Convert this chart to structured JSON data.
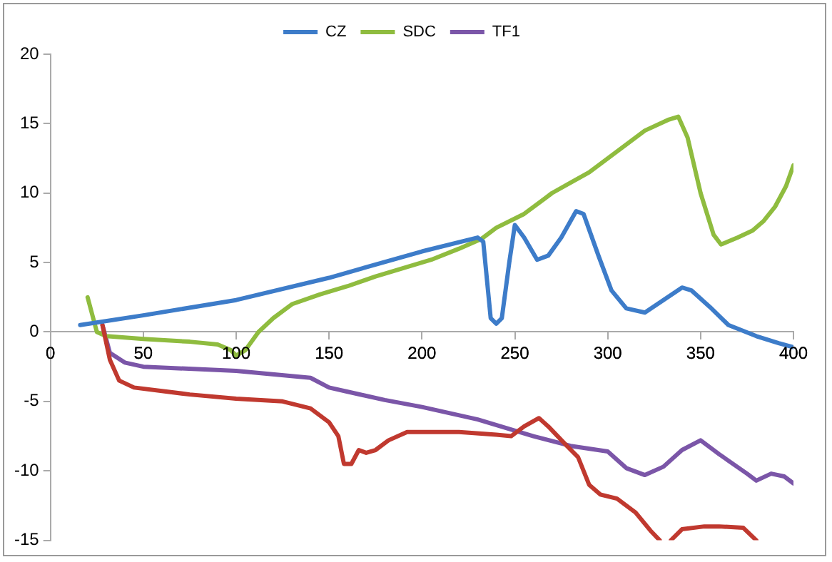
{
  "chart_data": {
    "type": "line",
    "legend": "top",
    "grid": false,
    "marker": "none",
    "line_style": "solid",
    "xlim": [
      0,
      400
    ],
    "xticks": [
      0,
      50,
      100,
      150,
      200,
      250,
      300,
      350,
      400
    ],
    "ylim": [
      -15,
      20
    ],
    "yticks": [
      -15,
      -10,
      -5,
      0,
      5,
      10,
      15,
      20
    ],
    "series": [
      {
        "name": "CZ",
        "color": "#3d7cc9",
        "x": [
          16,
          50,
          100,
          150,
          200,
          230,
          233,
          237,
          240,
          243,
          247,
          250,
          255,
          262,
          268,
          275,
          283,
          287,
          295,
          302,
          310,
          320,
          330,
          340,
          345,
          355,
          365,
          380,
          392,
          400
        ],
        "values": [
          0.5,
          1.2,
          2.3,
          3.9,
          5.8,
          6.8,
          6.5,
          1,
          0.6,
          1,
          5,
          7.7,
          6.8,
          5.2,
          5.5,
          6.8,
          8.7,
          8.5,
          5.5,
          3,
          1.7,
          1.4,
          2.3,
          3.2,
          3,
          1.8,
          0.5,
          -0.3,
          -0.8,
          -1.1
        ]
      },
      {
        "color": "#c0392f",
        "x": [
          28,
          32,
          37,
          45,
          75,
          100,
          125,
          140,
          150,
          155,
          158,
          162,
          166,
          170,
          175,
          182,
          192,
          220,
          240,
          248,
          255,
          263,
          268,
          278,
          284,
          290,
          296,
          305,
          315,
          323,
          328,
          331,
          334,
          340,
          352,
          360,
          373,
          380
        ],
        "values": [
          0.5,
          -2,
          -3.5,
          -4,
          -4.5,
          -4.8,
          -5,
          -5.5,
          -6.5,
          -7.5,
          -9.5,
          -9.5,
          -8.5,
          -8.7,
          -8.5,
          -7.8,
          -7.2,
          -7.2,
          -7.4,
          -7.5,
          -6.8,
          -6.2,
          -6.8,
          -8.2,
          -9,
          -11,
          -11.7,
          -12,
          -13,
          -14.3,
          -15,
          null,
          -15,
          -14.2,
          -14,
          -14,
          -14.1,
          -15
        ]
      },
      {
        "name": "SDC",
        "color": "#8fbc3f",
        "x": [
          20,
          25,
          30,
          50,
          75,
          90,
          97,
          100,
          105,
          112,
          120,
          130,
          145,
          160,
          175,
          190,
          205,
          220,
          232,
          240,
          255,
          270,
          290,
          305,
          320,
          333,
          338,
          343,
          350,
          357,
          361,
          370,
          378,
          384,
          390,
          396,
          400
        ],
        "values": [
          2.5,
          0,
          -0.3,
          -0.5,
          -0.7,
          -0.9,
          -1.3,
          -1.7,
          -1.3,
          0,
          1,
          2,
          2.7,
          3.3,
          4,
          4.6,
          5.2,
          6,
          6.7,
          7.5,
          8.5,
          10,
          11.5,
          13,
          14.5,
          15.3,
          15.5,
          14,
          10,
          7,
          6.3,
          6.8,
          7.3,
          8,
          9,
          10.5,
          12
        ]
      },
      {
        "name": "TF1",
        "color": "#7b56a8",
        "x": [
          28,
          32,
          40,
          50,
          100,
          140,
          150,
          160,
          180,
          200,
          230,
          260,
          280,
          300,
          310,
          320,
          330,
          340,
          350,
          360,
          375,
          380,
          388,
          395,
          400
        ],
        "values": [
          0.5,
          -1.5,
          -2.2,
          -2.5,
          -2.8,
          -3.3,
          -4,
          -4.3,
          -4.9,
          -5.4,
          -6.3,
          -7.5,
          -8.2,
          -8.6,
          -9.8,
          -10.3,
          -9.7,
          -8.5,
          -7.8,
          -8.8,
          -10.2,
          -10.7,
          -10.2,
          -10.4,
          -10.9
        ]
      }
    ]
  }
}
